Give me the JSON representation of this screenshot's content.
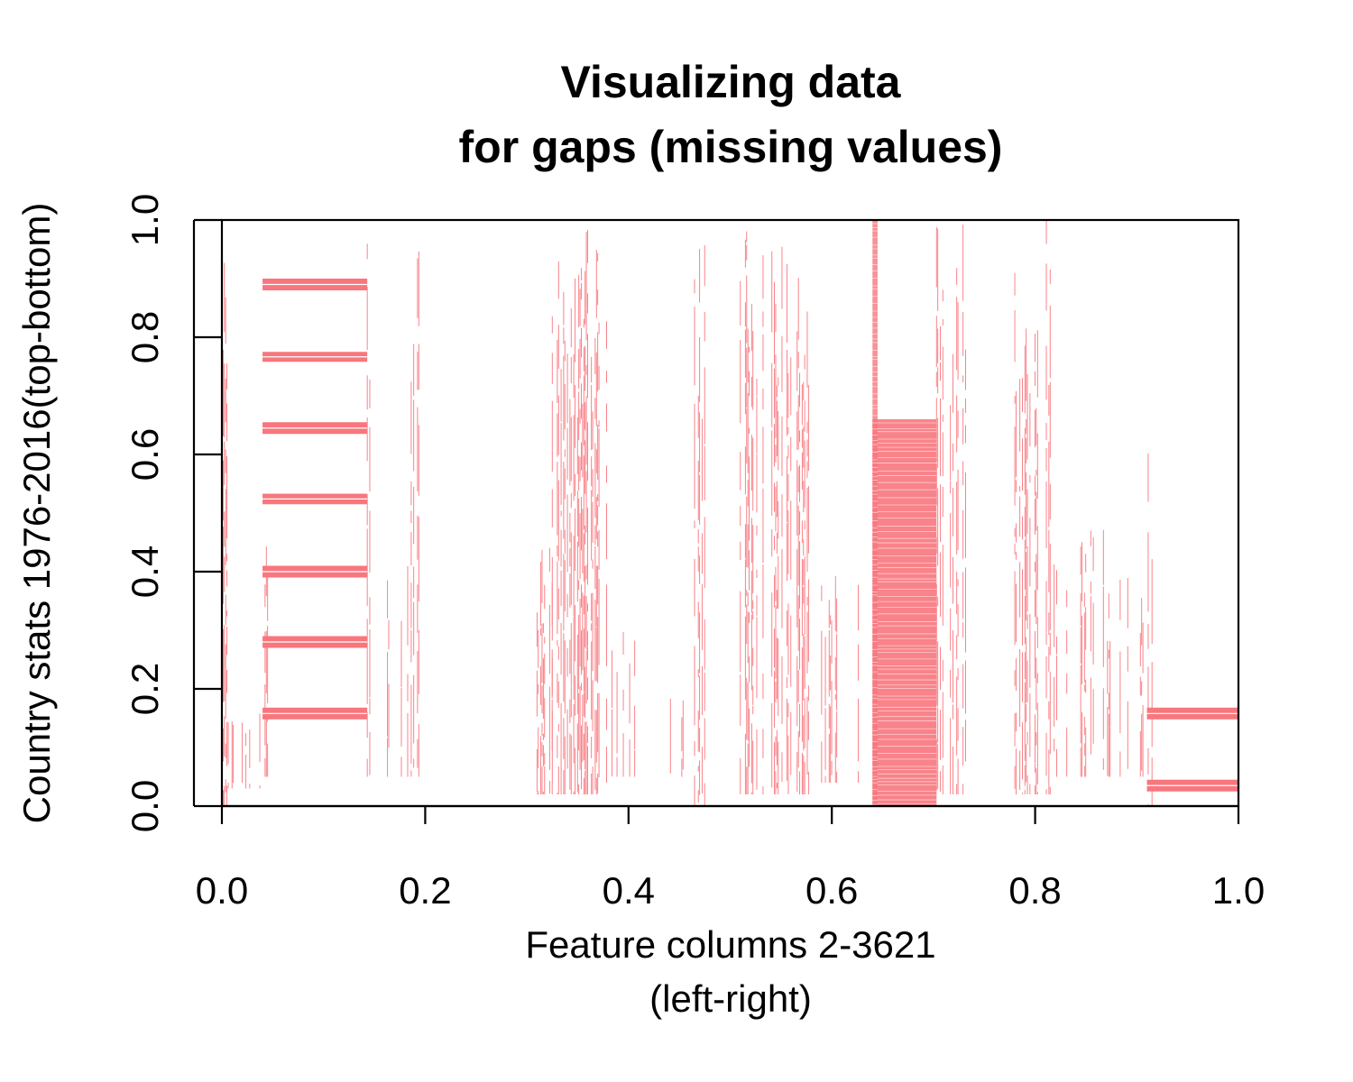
{
  "chart_data": {
    "type": "heatmap",
    "title_lines": [
      "Visualizing data",
      "for gaps (missing values)"
    ],
    "xlabel_lines": [
      "Feature columns 2-3621",
      "(left-right)"
    ],
    "ylabel": "Country stats 1976-2016(top-bottom)",
    "xlim": [
      0,
      1
    ],
    "ylim": [
      0,
      1
    ],
    "x_ticks": [
      "0.0",
      "0.2",
      "0.4",
      "0.6",
      "0.8",
      "1.0"
    ],
    "y_ticks": [
      "0.0",
      "0.2",
      "0.4",
      "0.6",
      "0.8",
      "1.0"
    ],
    "grid": false,
    "missing_color": "#F8767D",
    "horizontal_bands": [
      {
        "x": [
          0.04,
          0.143
        ],
        "y": [
          0.88,
          0.9
        ]
      },
      {
        "x": [
          0.04,
          0.143
        ],
        "y": [
          0.758,
          0.775
        ]
      },
      {
        "x": [
          0.04,
          0.143
        ],
        "y": [
          0.635,
          0.655
        ]
      },
      {
        "x": [
          0.04,
          0.143
        ],
        "y": [
          0.515,
          0.533
        ]
      },
      {
        "x": [
          0.04,
          0.143
        ],
        "y": [
          0.39,
          0.41
        ]
      },
      {
        "x": [
          0.04,
          0.143
        ],
        "y": [
          0.27,
          0.29
        ]
      },
      {
        "x": [
          0.04,
          0.143
        ],
        "y": [
          0.148,
          0.168
        ]
      },
      {
        "x": [
          0.91,
          1.0
        ],
        "y": [
          0.148,
          0.168
        ]
      },
      {
        "x": [
          0.91,
          1.0
        ],
        "y": [
          0.025,
          0.045
        ]
      }
    ],
    "dense_blocks": [
      {
        "x": [
          0.64,
          0.703
        ],
        "y": [
          0.0,
          0.66
        ],
        "density": 0.9
      },
      {
        "x": [
          0.64,
          0.645
        ],
        "y": [
          0.0,
          1.0
        ],
        "density": 0.8
      }
    ],
    "stripe_regions": [
      {
        "x": [
          0.0,
          0.005
        ],
        "y": [
          0.0,
          1.0
        ],
        "density": 0.5
      },
      {
        "x": [
          0.005,
          0.04
        ],
        "y": [
          0.03,
          0.17
        ],
        "density": 0.25
      },
      {
        "x": [
          0.04,
          0.045
        ],
        "y": [
          0.05,
          0.46
        ],
        "density": 0.4
      },
      {
        "x": [
          0.143,
          0.148
        ],
        "y": [
          0.05,
          1.0
        ],
        "density": 0.6
      },
      {
        "x": [
          0.148,
          0.185
        ],
        "y": [
          0.05,
          0.44
        ],
        "density": 0.2
      },
      {
        "x": [
          0.185,
          0.195
        ],
        "y": [
          0.05,
          1.0
        ],
        "density": 0.6
      },
      {
        "x": [
          0.31,
          0.325
        ],
        "y": [
          0.02,
          0.45
        ],
        "density": 0.5
      },
      {
        "x": [
          0.325,
          0.38
        ],
        "y": [
          0.02,
          1.0
        ],
        "density": 0.5
      },
      {
        "x": [
          0.38,
          0.41
        ],
        "y": [
          0.05,
          0.3
        ],
        "density": 0.2
      },
      {
        "x": [
          0.44,
          0.46
        ],
        "y": [
          0.05,
          0.2
        ],
        "density": 0.25
      },
      {
        "x": [
          0.46,
          0.475
        ],
        "y": [
          0.0,
          1.0
        ],
        "density": 0.3
      },
      {
        "x": [
          0.51,
          0.58
        ],
        "y": [
          0.02,
          1.0
        ],
        "density": 0.4
      },
      {
        "x": [
          0.58,
          0.64
        ],
        "y": [
          0.04,
          0.41
        ],
        "density": 0.15
      },
      {
        "x": [
          0.703,
          0.735
        ],
        "y": [
          0.02,
          1.0
        ],
        "density": 0.45
      },
      {
        "x": [
          0.78,
          0.815
        ],
        "y": [
          0.02,
          1.0
        ],
        "density": 0.5
      },
      {
        "x": [
          0.815,
          0.87
        ],
        "y": [
          0.05,
          0.53
        ],
        "density": 0.25
      },
      {
        "x": [
          0.87,
          0.91
        ],
        "y": [
          0.05,
          0.4
        ],
        "density": 0.2
      },
      {
        "x": [
          0.91,
          0.915
        ],
        "y": [
          0.0,
          0.63
        ],
        "density": 0.5
      }
    ]
  }
}
